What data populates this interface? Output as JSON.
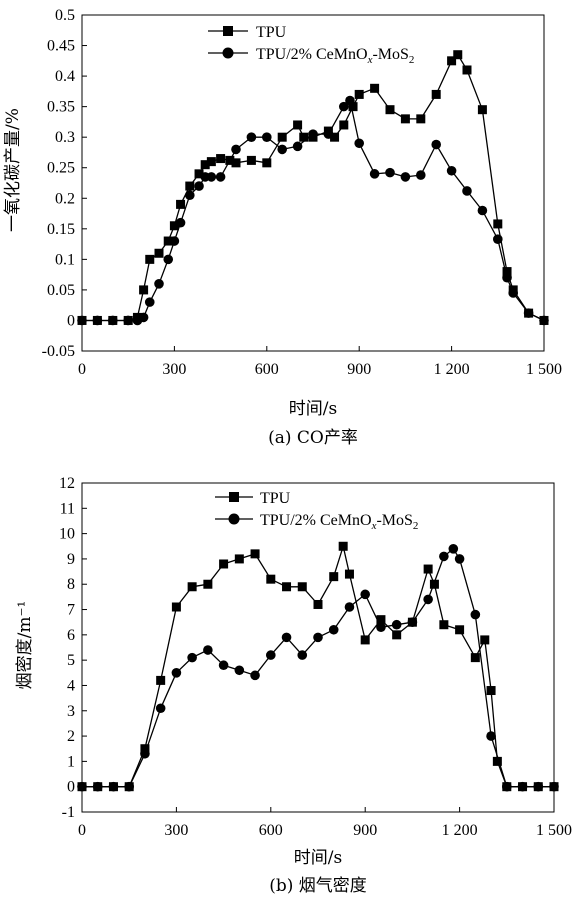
{
  "chart_data": [
    {
      "type": "line",
      "caption": "(a) CO产率",
      "xlabel": "时间/s",
      "ylabel": "一氧化碳产量/%",
      "xlim": [
        0,
        1500
      ],
      "ylim": [
        -0.05,
        0.5
      ],
      "x_ticks": [
        0,
        300,
        600,
        900,
        1200,
        1500
      ],
      "x_tick_labels": [
        "0",
        "300",
        "600",
        "900",
        "1 200",
        "1 500"
      ],
      "y_ticks": [
        -0.05,
        0,
        0.05,
        0.1,
        0.15,
        0.2,
        0.25,
        0.3,
        0.35,
        0.4,
        0.45,
        0.5
      ],
      "y_tick_labels": [
        "-0.05",
        "0",
        "0.05",
        "0.1",
        "0.15",
        "0.2",
        "0.25",
        "0.3",
        "0.35",
        "0.4",
        "0.45",
        "0.5"
      ],
      "grid": false,
      "legend_position": "top-right",
      "series": [
        {
          "name": "TPU",
          "marker": "square",
          "x": [
            0,
            50,
            100,
            150,
            180,
            200,
            220,
            250,
            280,
            300,
            320,
            350,
            380,
            400,
            420,
            450,
            480,
            500,
            550,
            600,
            650,
            700,
            720,
            750,
            800,
            820,
            850,
            880,
            900,
            950,
            1000,
            1050,
            1100,
            1150,
            1200,
            1220,
            1250,
            1300,
            1350,
            1380,
            1400,
            1450,
            1500
          ],
          "y": [
            0,
            0,
            0,
            0,
            0.005,
            0.05,
            0.1,
            0.11,
            0.13,
            0.155,
            0.19,
            0.22,
            0.24,
            0.255,
            0.26,
            0.265,
            0.262,
            0.258,
            0.262,
            0.258,
            0.3,
            0.32,
            0.3,
            0.3,
            0.31,
            0.3,
            0.32,
            0.35,
            0.37,
            0.38,
            0.345,
            0.33,
            0.33,
            0.37,
            0.425,
            0.435,
            0.41,
            0.345,
            0.158,
            0.08,
            0.05,
            0.012,
            0
          ]
        },
        {
          "name": "TPU/2% CeMnOx-MoS2",
          "marker": "circle",
          "x": [
            0,
            50,
            100,
            150,
            180,
            200,
            220,
            250,
            280,
            300,
            320,
            350,
            380,
            400,
            420,
            450,
            500,
            550,
            600,
            650,
            700,
            750,
            800,
            850,
            870,
            900,
            950,
            1000,
            1050,
            1100,
            1150,
            1200,
            1250,
            1300,
            1350,
            1380,
            1400,
            1450,
            1500
          ],
          "y": [
            0,
            0,
            0,
            0,
            0,
            0.005,
            0.03,
            0.06,
            0.1,
            0.13,
            0.16,
            0.205,
            0.22,
            0.235,
            0.235,
            0.235,
            0.28,
            0.3,
            0.3,
            0.28,
            0.285,
            0.305,
            0.305,
            0.35,
            0.36,
            0.29,
            0.24,
            0.242,
            0.235,
            0.238,
            0.288,
            0.245,
            0.212,
            0.18,
            0.133,
            0.07,
            0.045,
            0.012,
            0
          ]
        }
      ]
    },
    {
      "type": "line",
      "caption": "(b) 烟气密度",
      "xlabel": "时间/s",
      "ylabel": "烟密度/m⁻¹",
      "xlim": [
        0,
        1500
      ],
      "ylim": [
        -1,
        12
      ],
      "x_ticks": [
        0,
        300,
        600,
        900,
        1200,
        1500
      ],
      "x_tick_labels": [
        "0",
        "300",
        "600",
        "900",
        "1 200",
        "1 500"
      ],
      "y_ticks": [
        -1,
        0,
        1,
        2,
        3,
        4,
        5,
        6,
        7,
        8,
        9,
        10,
        11,
        12
      ],
      "y_tick_labels": [
        "-1",
        "0",
        "1",
        "2",
        "3",
        "4",
        "5",
        "6",
        "7",
        "8",
        "9",
        "10",
        "11",
        "12"
      ],
      "grid": false,
      "legend_position": "top-right",
      "series": [
        {
          "name": "TPU",
          "marker": "square",
          "x": [
            0,
            50,
            100,
            150,
            200,
            250,
            300,
            350,
            400,
            450,
            500,
            550,
            600,
            650,
            700,
            750,
            800,
            830,
            850,
            900,
            950,
            1000,
            1050,
            1100,
            1120,
            1150,
            1200,
            1250,
            1280,
            1300,
            1320,
            1350,
            1400,
            1450,
            1500
          ],
          "y": [
            0,
            0,
            0,
            0,
            1.5,
            4.2,
            7.1,
            7.9,
            8.0,
            8.8,
            9.0,
            9.2,
            8.2,
            7.9,
            7.9,
            7.2,
            8.3,
            9.5,
            8.4,
            5.8,
            6.6,
            6.0,
            6.5,
            8.6,
            8.0,
            6.4,
            6.2,
            5.1,
            5.8,
            3.8,
            1.0,
            0,
            0,
            0,
            0
          ]
        },
        {
          "name": "TPU/2% CeMnOx-MoS2",
          "marker": "circle",
          "x": [
            0,
            50,
            100,
            150,
            200,
            250,
            300,
            350,
            400,
            450,
            500,
            550,
            600,
            650,
            700,
            750,
            800,
            850,
            900,
            950,
            1000,
            1050,
            1100,
            1150,
            1180,
            1200,
            1250,
            1300,
            1350,
            1400,
            1450,
            1500
          ],
          "y": [
            0,
            0,
            0,
            0,
            1.3,
            3.1,
            4.5,
            5.1,
            5.4,
            4.8,
            4.6,
            4.4,
            5.2,
            5.9,
            5.2,
            5.9,
            6.2,
            7.1,
            7.6,
            6.3,
            6.4,
            6.5,
            7.4,
            9.1,
            9.4,
            9.0,
            6.8,
            2.0,
            0,
            0,
            0,
            0
          ]
        }
      ]
    }
  ],
  "legend": {
    "series1_label": "TPU",
    "series2_main": "TPU/2% CeMnO",
    "series2_sub_x": "x",
    "series2_mid": "-MoS",
    "series2_sub_2": "2"
  }
}
